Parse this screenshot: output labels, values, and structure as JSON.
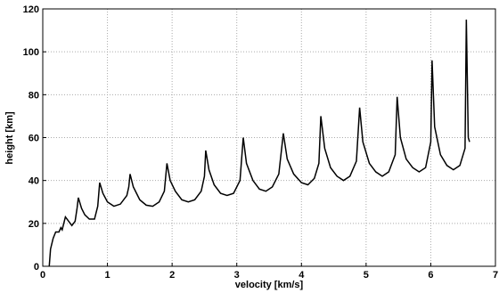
{
  "chart_data": {
    "type": "line",
    "xlabel": "velocity [km/s]",
    "ylabel": "height [km]",
    "x": [
      0.1,
      0.12,
      0.16,
      0.2,
      0.25,
      0.28,
      0.3,
      0.35,
      0.4,
      0.45,
      0.5,
      0.53,
      0.55,
      0.6,
      0.65,
      0.72,
      0.8,
      0.85,
      0.88,
      0.93,
      1.0,
      1.1,
      1.2,
      1.3,
      1.33,
      1.35,
      1.4,
      1.5,
      1.6,
      1.7,
      1.8,
      1.88,
      1.92,
      1.97,
      2.05,
      2.15,
      2.25,
      2.35,
      2.45,
      2.5,
      2.52,
      2.57,
      2.65,
      2.75,
      2.85,
      2.95,
      3.05,
      3.1,
      3.15,
      3.25,
      3.35,
      3.45,
      3.55,
      3.65,
      3.72,
      3.78,
      3.88,
      4.0,
      4.1,
      4.2,
      4.27,
      4.3,
      4.36,
      4.45,
      4.55,
      4.65,
      4.75,
      4.85,
      4.9,
      4.95,
      5.05,
      5.15,
      5.25,
      5.35,
      5.45,
      5.48,
      5.53,
      5.62,
      5.72,
      5.82,
      5.92,
      6.0,
      6.02,
      6.06,
      6.15,
      6.25,
      6.35,
      6.45,
      6.53,
      6.55,
      6.58,
      6.6
    ],
    "series": [
      {
        "color": "#000000",
        "values": [
          0,
          8,
          13,
          16,
          16,
          18,
          17,
          23,
          21,
          19,
          21,
          27,
          32,
          27,
          24,
          22,
          22,
          28,
          39,
          34,
          30,
          28,
          29,
          33,
          37,
          43,
          37,
          31,
          28.5,
          28,
          30,
          35,
          48,
          40,
          35,
          31,
          30,
          31,
          35,
          42,
          54,
          45,
          38,
          34,
          33,
          34,
          40,
          60,
          48,
          40,
          36,
          35,
          37,
          43,
          62,
          50,
          43,
          39,
          38,
          41,
          48,
          70,
          55,
          46,
          42,
          40,
          42,
          49,
          74,
          58,
          48,
          44,
          42,
          44,
          52,
          79,
          60,
          50,
          46,
          44,
          46,
          58,
          96,
          65,
          52,
          47,
          45,
          47,
          55,
          115,
          60,
          58
        ]
      }
    ],
    "xlim": [
      0,
      7
    ],
    "ylim": [
      0,
      120
    ],
    "xticks": [
      0,
      1,
      2,
      3,
      4,
      5,
      6,
      7
    ],
    "yticks": [
      0,
      20,
      40,
      60,
      80,
      100,
      120
    ],
    "grid": true
  }
}
